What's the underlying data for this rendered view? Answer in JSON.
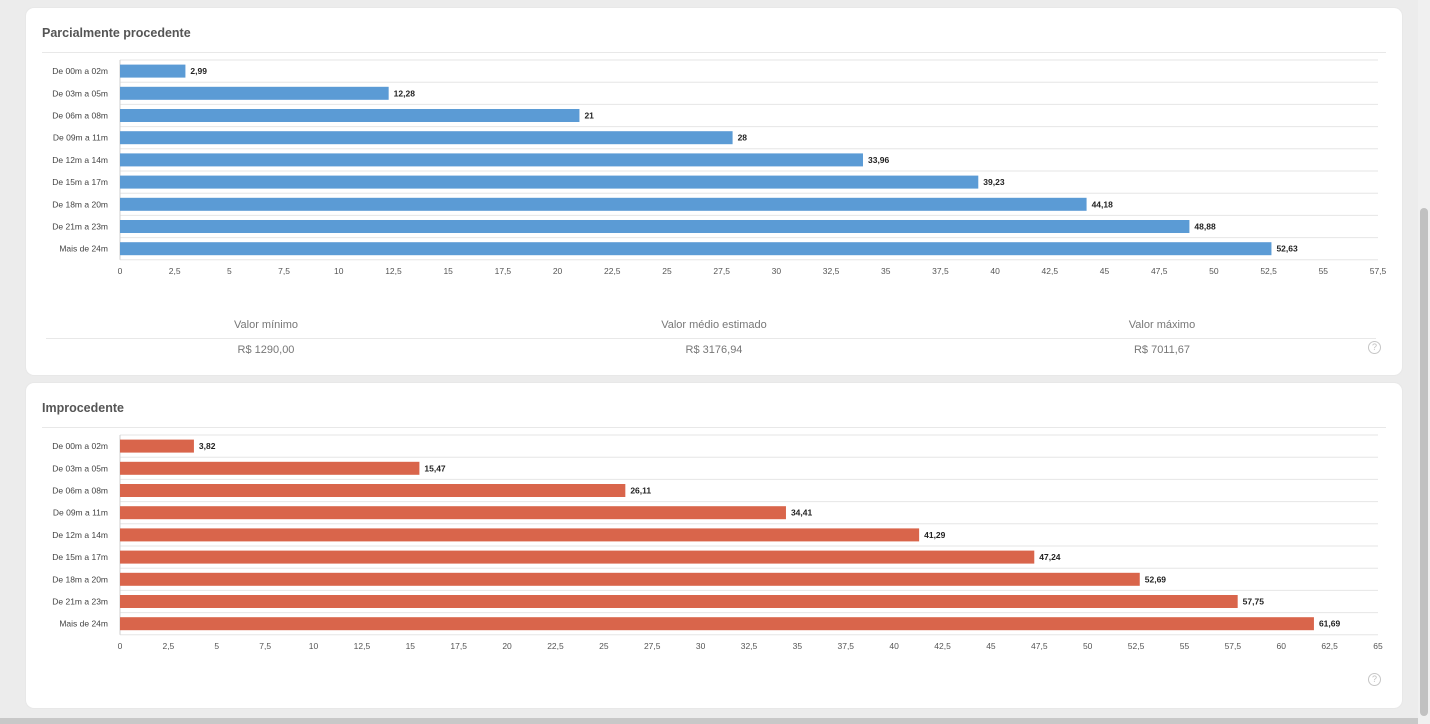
{
  "colors": {
    "card1_bar": "#5b9bd5",
    "card2_bar": "#d9654b"
  },
  "help_icon_glyph": "?",
  "chart_data": [
    {
      "type": "bar",
      "orientation": "horizontal",
      "title": "Parcialmente procedente",
      "categories": [
        "De 00m a 02m",
        "De 03m a 05m",
        "De 06m a 08m",
        "De 09m a 11m",
        "De 12m a 14m",
        "De 15m a 17m",
        "De 18m a 20m",
        "De 21m a 23m",
        "Mais de 24m"
      ],
      "values": [
        2.99,
        12.28,
        21,
        28,
        33.96,
        39.23,
        44.18,
        48.88,
        52.63
      ],
      "value_labels": [
        "2,99",
        "12,28",
        "21",
        "28",
        "33,96",
        "39,23",
        "44,18",
        "48,88",
        "52,63"
      ],
      "xticks": [
        "0",
        "2,5",
        "5",
        "7,5",
        "10",
        "12,5",
        "15",
        "17,5",
        "20",
        "22,5",
        "25",
        "27,5",
        "30",
        "32,5",
        "35",
        "37,5",
        "40",
        "42,5",
        "45",
        "47,5",
        "50",
        "52,5",
        "55",
        "57,5"
      ],
      "xlim": [
        0,
        57.5
      ],
      "grid": true
    },
    {
      "type": "bar",
      "orientation": "horizontal",
      "title": "Improcedente",
      "categories": [
        "De 00m a 02m",
        "De 03m a 05m",
        "De 06m a 08m",
        "De 09m a 11m",
        "De 12m a 14m",
        "De 15m a 17m",
        "De 18m a 20m",
        "De 21m a 23m",
        "Mais de 24m"
      ],
      "values": [
        3.82,
        15.47,
        26.11,
        34.41,
        41.29,
        47.24,
        52.69,
        57.75,
        61.69
      ],
      "value_labels": [
        "3,82",
        "15,47",
        "26,11",
        "34,41",
        "41,29",
        "47,24",
        "52,69",
        "57,75",
        "61,69"
      ],
      "xticks": [
        "0",
        "2,5",
        "5",
        "7,5",
        "10",
        "12,5",
        "15",
        "17,5",
        "20",
        "22,5",
        "25",
        "27,5",
        "30",
        "32,5",
        "35",
        "37,5",
        "40",
        "42,5",
        "45",
        "47,5",
        "50",
        "52,5",
        "55",
        "57,5",
        "60",
        "62,5",
        "65"
      ],
      "xlim": [
        0,
        65
      ],
      "grid": true
    }
  ],
  "stats": {
    "min_label": "Valor mínimo",
    "min_value": "R$ 1290,00",
    "avg_label": "Valor médio estimado",
    "avg_value": "R$ 3176,94",
    "max_label": "Valor máximo",
    "max_value": "R$ 7011,67"
  }
}
